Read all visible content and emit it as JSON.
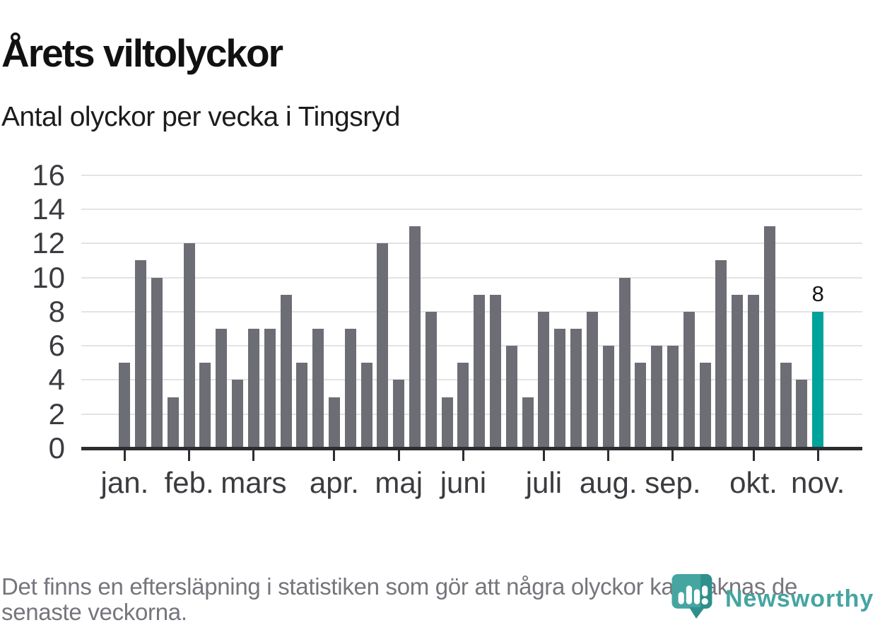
{
  "header": {
    "title": "Årets viltolyckor",
    "subtitle": "Antal olyckor per vecka i Tingsryd"
  },
  "chart_data": {
    "type": "bar",
    "title": "Årets viltolyckor",
    "subtitle": "Antal olyckor per vecka i Tingsryd",
    "x_unit": "vecka (januari–november)",
    "ylabel": "Antal olyckor",
    "values": [
      5,
      11,
      10,
      3,
      12,
      5,
      7,
      4,
      7,
      7,
      9,
      5,
      7,
      3,
      7,
      5,
      12,
      4,
      13,
      8,
      3,
      5,
      9,
      9,
      6,
      3,
      8,
      7,
      7,
      8,
      6,
      10,
      5,
      6,
      6,
      8,
      5,
      11,
      9,
      9,
      13,
      5,
      4,
      8
    ],
    "highlight": {
      "index": 43,
      "value": 8,
      "label": "8"
    },
    "ylim": [
      0,
      16
    ],
    "y_ticks": [
      0,
      2,
      4,
      6,
      8,
      10,
      12,
      14,
      16
    ],
    "x_ticks": [
      {
        "label": "jan.",
        "bar_index": 0
      },
      {
        "label": "feb.",
        "bar_index": 4
      },
      {
        "label": "mars",
        "bar_index": 8
      },
      {
        "label": "apr.",
        "bar_index": 13
      },
      {
        "label": "maj",
        "bar_index": 17
      },
      {
        "label": "juni",
        "bar_index": 21
      },
      {
        "label": "juli",
        "bar_index": 26
      },
      {
        "label": "aug.",
        "bar_index": 30
      },
      {
        "label": "sep.",
        "bar_index": 34
      },
      {
        "label": "okt.",
        "bar_index": 39
      },
      {
        "label": "nov.",
        "bar_index": 43
      }
    ],
    "grid": "horizontal",
    "legend": "none",
    "colors": {
      "bar": "#6d6d75",
      "highlight": "#00a39b",
      "axis": "#2d2d31",
      "gridline": "#e3e3e5",
      "labels": "#3b3b40"
    }
  },
  "footer": {
    "note": "Det finns en eftersläpning i statistiken som gör att några olyckor kan saknas de senaste veckorna.",
    "brand": {
      "name": "Newsworthy",
      "color": "#45a5a1",
      "icon": "newsworthy-speech-bubble-barchart-icon"
    }
  }
}
